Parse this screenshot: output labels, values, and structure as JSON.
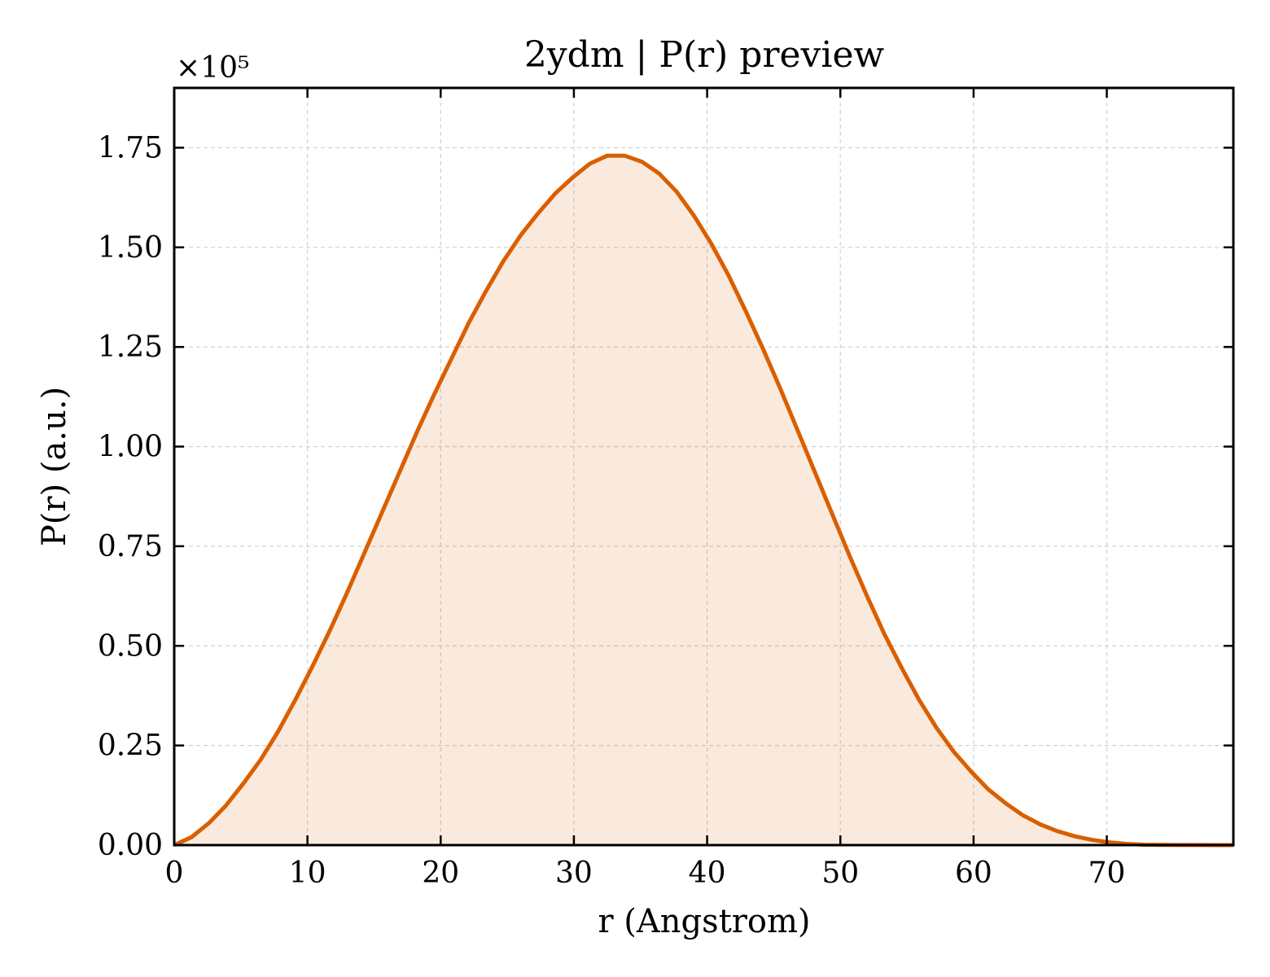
{
  "chart_data": {
    "type": "area",
    "title": "2ydm | P(r) preview",
    "xlabel": "r (Angstrom)",
    "ylabel": "P(r) (a.u.)",
    "y_offset_label": "×10⁵",
    "xlim": [
      0,
      79.5
    ],
    "ylim": [
      0,
      1.9
    ],
    "xticks": [
      0,
      10,
      20,
      30,
      40,
      50,
      60,
      70
    ],
    "yticks": [
      0.0,
      0.25,
      0.5,
      0.75,
      1.0,
      1.25,
      1.5,
      1.75
    ],
    "ytick_labels": [
      "0.00",
      "0.25",
      "0.50",
      "0.75",
      "1.00",
      "1.25",
      "1.50",
      "1.75"
    ],
    "grid": true,
    "line_color": "#d95f02",
    "series": [
      {
        "x": [
          0,
          1.3,
          2.6,
          3.9,
          5.2,
          6.5,
          7.8,
          9.1,
          10.4,
          11.7,
          13.0,
          14.3,
          15.6,
          16.9,
          18.2,
          19.5,
          20.8,
          22.1,
          23.4,
          24.7,
          26.0,
          27.3,
          28.6,
          29.9,
          31.2,
          32.5,
          33.8,
          35.1,
          36.4,
          37.7,
          39.0,
          40.3,
          41.6,
          42.9,
          44.2,
          45.5,
          46.8,
          48.1,
          49.4,
          50.7,
          52.0,
          53.3,
          54.6,
          55.9,
          57.2,
          58.5,
          59.8,
          61.1,
          62.4,
          63.7,
          65.0,
          66.3,
          67.6,
          68.9,
          70.2,
          71.5,
          72.8,
          74.1,
          75.4,
          76.7,
          78.0,
          79.5
        ],
        "y": [
          0.0,
          0.02,
          0.055,
          0.1,
          0.155,
          0.215,
          0.285,
          0.365,
          0.45,
          0.54,
          0.635,
          0.735,
          0.835,
          0.935,
          1.035,
          1.13,
          1.22,
          1.31,
          1.39,
          1.465,
          1.53,
          1.585,
          1.635,
          1.675,
          1.71,
          1.73,
          1.73,
          1.715,
          1.685,
          1.64,
          1.58,
          1.51,
          1.43,
          1.34,
          1.245,
          1.145,
          1.04,
          0.935,
          0.83,
          0.725,
          0.625,
          0.53,
          0.445,
          0.365,
          0.295,
          0.235,
          0.185,
          0.14,
          0.105,
          0.075,
          0.052,
          0.035,
          0.022,
          0.013,
          0.007,
          0.003,
          0.001,
          0.0005,
          0.0003,
          0.0002,
          0.0001,
          0.0
        ]
      }
    ]
  }
}
